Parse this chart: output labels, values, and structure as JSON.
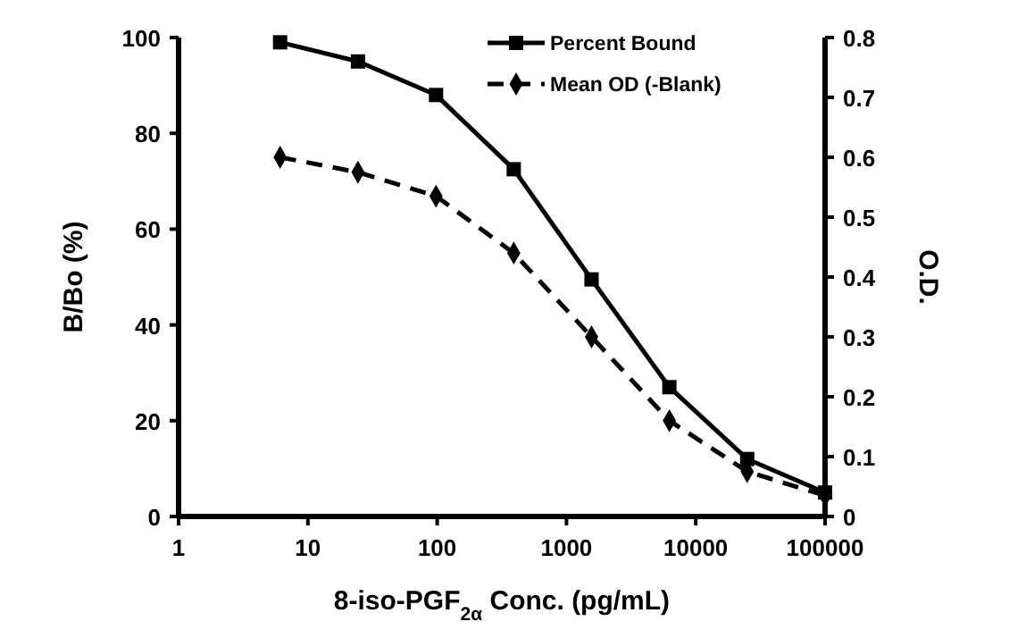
{
  "chart_data": {
    "type": "line",
    "xlabel": "8-iso-PGF$_{2α}$ Conc. (pg/mL)",
    "ylabel": "B/Bo (%)",
    "y2label": "O.D.",
    "log": "x",
    "xlim": [
      1,
      100000
    ],
    "xticks": [
      1,
      10,
      100,
      1000,
      10000,
      100000
    ],
    "ylim": [
      0,
      100
    ],
    "yticks": [
      0,
      20,
      40,
      60,
      80,
      100
    ],
    "y2lim": [
      0,
      0.8
    ],
    "y2ticks": [
      0,
      0.1,
      0.2,
      0.3,
      0.4,
      0.5,
      0.6,
      0.7,
      0.8
    ],
    "legend": "top right",
    "series": [
      {
        "name": "Percent Bound",
        "color": "#000000",
        "marker": "square",
        "line_style": "solid",
        "x": [
          6.1,
          24.4,
          98,
          391,
          1563,
          6250,
          25000,
          100000
        ],
        "values": [
          99,
          95,
          88,
          72.5,
          49.5,
          27,
          12,
          5
        ]
      },
      {
        "name": "Mean OD (-Blank)",
        "color": "#000000",
        "marker": "diamond",
        "line_style": "dashed",
        "axis": "y2",
        "x": [
          6.1,
          24.4,
          98,
          391,
          1563,
          6250,
          25000,
          100000
        ],
        "values": [
          0.6,
          0.575,
          0.535,
          0.44,
          0.3,
          0.16,
          0.075,
          0.035
        ]
      }
    ]
  }
}
